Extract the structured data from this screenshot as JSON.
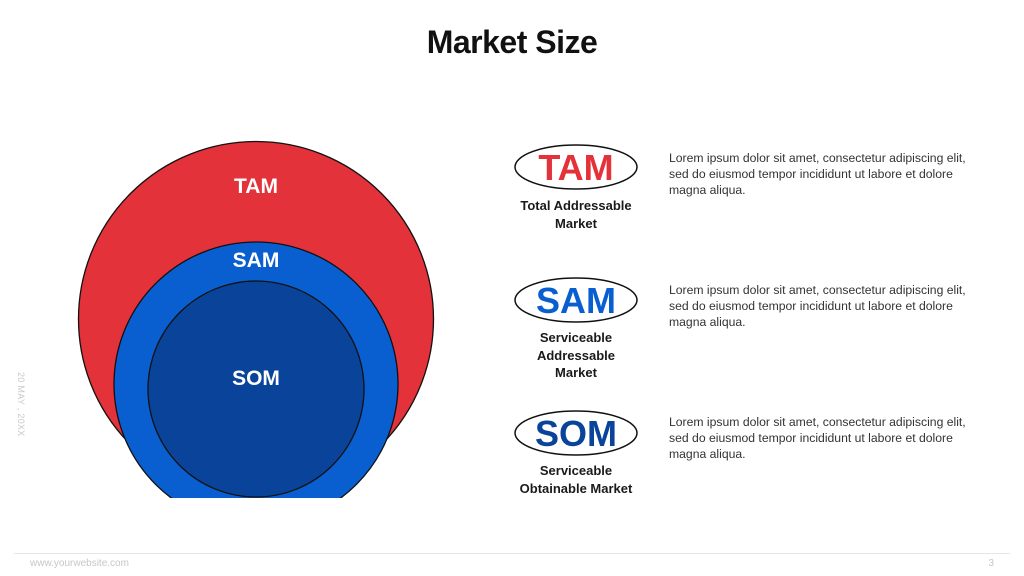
{
  "slide": {
    "title": "Market Size",
    "date": "20 MAY , 20XX",
    "footer_url": "www.yourwebsite.com",
    "page_number": "3"
  },
  "colors": {
    "tam": "#e3323a",
    "sam": "#0a5fd0",
    "som": "#0a449a",
    "outline": "#111111"
  },
  "circles": {
    "tam_label": "TAM",
    "sam_label": "SAM",
    "som_label": "SOM"
  },
  "items": [
    {
      "badge": "TAM",
      "sublabel": "Total Addressable\nMarket",
      "description": "Lorem ipsum dolor sit amet, consectetur  adipiscing elit, sed do eiusmod tempor incididunt ut labore et dolore magna aliqua."
    },
    {
      "badge": "SAM",
      "sublabel": "Serviceable\nAddressable\nMarket",
      "description": "Lorem ipsum dolor sit amet, consectetur  adipiscing elit, sed do eiusmod tempor incididunt ut labore et dolore magna aliqua."
    },
    {
      "badge": "SOM",
      "sublabel": "Serviceable\nObtainable Market",
      "description": "Lorem ipsum dolor sit amet, consectetur  adipiscing elit, sed do eiusmod tempor incididunt ut labore et dolore magna aliqua."
    }
  ]
}
